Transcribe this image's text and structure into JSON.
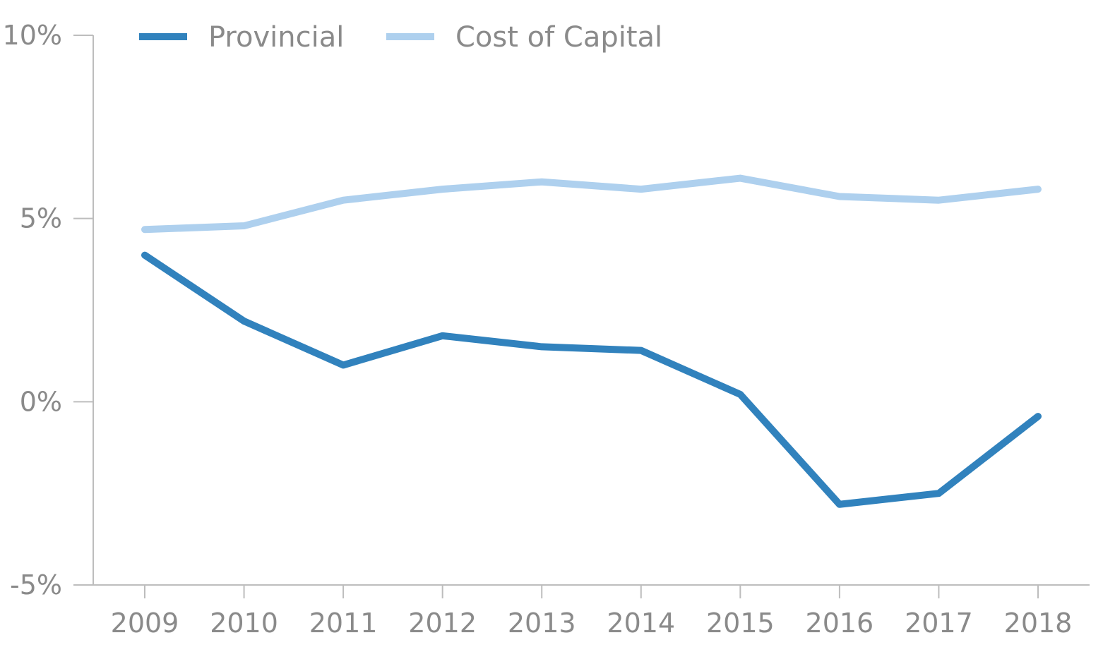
{
  "chart_data": {
    "type": "line",
    "title": "",
    "xlabel": "",
    "ylabel": "",
    "x": [
      "2009",
      "2010",
      "2011",
      "2012",
      "2013",
      "2014",
      "2015",
      "2016",
      "2017",
      "2018"
    ],
    "ylim": [
      -5,
      10
    ],
    "yticks": [
      -5,
      0,
      5,
      10
    ],
    "ytick_labels": [
      "-5%",
      "0%",
      "5%",
      "10%"
    ],
    "legend_placement": "top-left",
    "grid": false,
    "series": [
      {
        "name": "Provincial",
        "color": "#3182bd",
        "values": [
          4.0,
          2.2,
          1.0,
          1.8,
          1.5,
          1.4,
          0.2,
          -2.8,
          -2.5,
          -0.4
        ]
      },
      {
        "name": "Cost of Capital",
        "color": "#aed0ee",
        "values": [
          4.7,
          4.8,
          5.5,
          5.8,
          6.0,
          5.8,
          6.1,
          5.6,
          5.5,
          5.8
        ]
      }
    ]
  }
}
